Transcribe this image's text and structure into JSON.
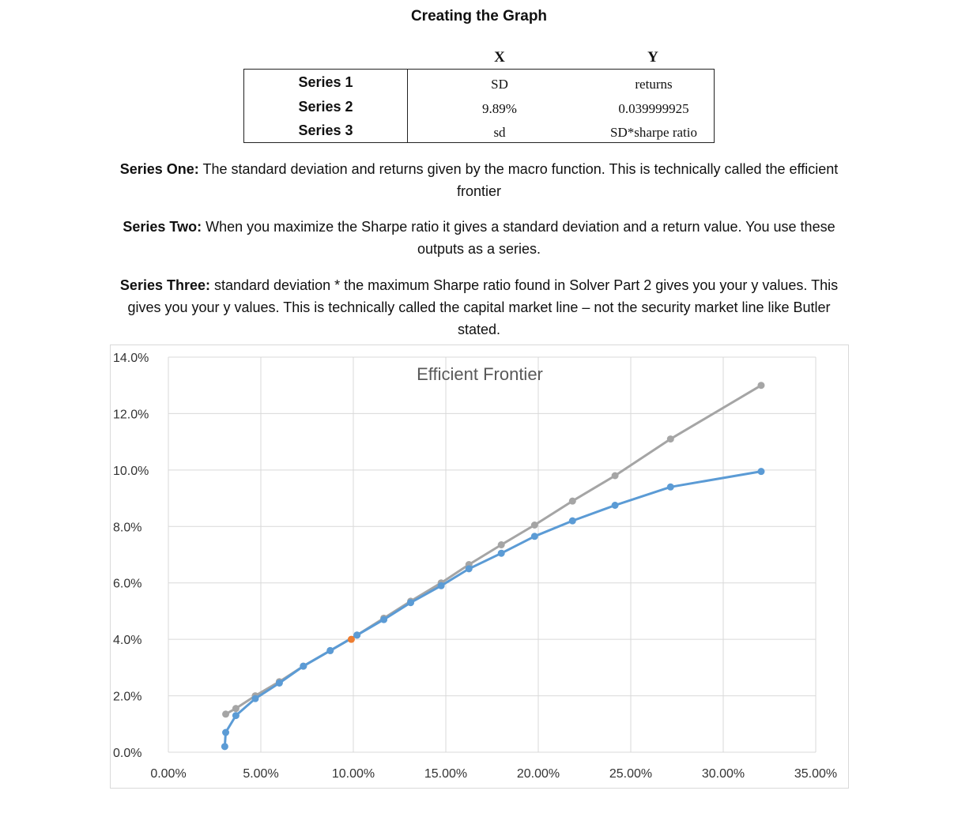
{
  "title": "Creating the Graph",
  "table": {
    "header_x": "X",
    "header_y": "Y",
    "rows": [
      {
        "name": "Series 1",
        "x": "SD",
        "y": "returns"
      },
      {
        "name": "Series 2",
        "x": "9.89%",
        "y": "0.039999925"
      },
      {
        "name": "Series 3",
        "x": "sd",
        "y": "SD*sharpe ratio"
      }
    ]
  },
  "paragraphs": [
    {
      "label": "Series One:",
      "text": "The standard deviation and returns given by the macro function.  This is technically called the efficient frontier"
    },
    {
      "label": "Series Two:",
      "text": "When you maximize the Sharpe ratio it gives a standard deviation and a return value. You use these outputs as a series."
    },
    {
      "label": "Series Three:",
      "text": "standard deviation * the maximum Sharpe ratio found in Solver Part 2 gives you your y values. This gives you your y values. This is technically called the capital market line – not the security market line like Butler stated."
    }
  ],
  "chart_data": {
    "type": "scatter",
    "title": "Efficient Frontier",
    "xlim": [
      0,
      0.35
    ],
    "ylim": [
      0,
      0.14
    ],
    "x_ticks": [
      "0.00%",
      "5.00%",
      "10.00%",
      "15.00%",
      "20.00%",
      "25.00%",
      "30.00%",
      "35.00%"
    ],
    "y_ticks": [
      "0.0%",
      "2.0%",
      "4.0%",
      "6.0%",
      "8.0%",
      "10.0%",
      "12.0%",
      "14.0%"
    ],
    "grid": true,
    "colors": {
      "series1": "#5b9bd5",
      "series2": "#ed7d31",
      "series3": "#a5a5a5",
      "grid": "#d9d9d9"
    },
    "series": [
      {
        "key": "series1",
        "lines": true,
        "x": [
          0.0305,
          0.031,
          0.0365,
          0.047,
          0.06,
          0.073,
          0.0875,
          0.102,
          0.1165,
          0.131,
          0.1475,
          0.1625,
          0.18,
          0.198,
          0.2185,
          0.2415,
          0.2715,
          0.3205
        ],
        "y": [
          0.002,
          0.007,
          0.013,
          0.019,
          0.0245,
          0.0305,
          0.036,
          0.0415,
          0.047,
          0.053,
          0.059,
          0.065,
          0.0705,
          0.0765,
          0.082,
          0.0875,
          0.094,
          0.0995
        ]
      },
      {
        "key": "series2",
        "lines": false,
        "x": [
          0.0989
        ],
        "y": [
          0.04
        ]
      },
      {
        "key": "series3",
        "lines": true,
        "x": [
          0.031,
          0.0365,
          0.047,
          0.06,
          0.073,
          0.0875,
          0.102,
          0.1165,
          0.131,
          0.1475,
          0.1625,
          0.18,
          0.198,
          0.2185,
          0.2415,
          0.2715,
          0.3205
        ],
        "y": [
          0.0135,
          0.0155,
          0.02,
          0.025,
          0.0305,
          0.036,
          0.0415,
          0.0475,
          0.0535,
          0.06,
          0.0665,
          0.0735,
          0.0805,
          0.089,
          0.098,
          0.111,
          0.13
        ]
      }
    ]
  }
}
